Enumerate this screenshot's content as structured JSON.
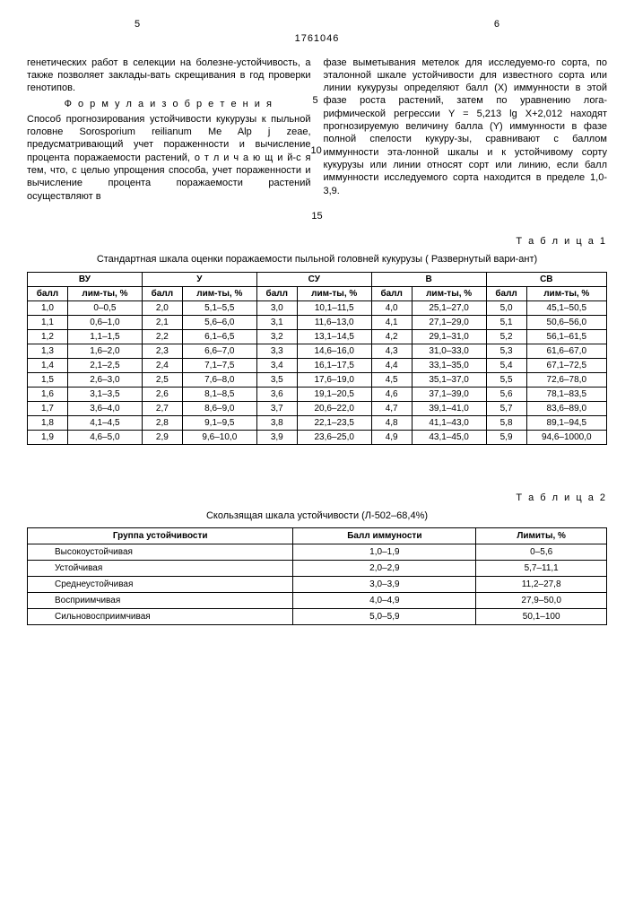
{
  "pageLeft": "5",
  "pageRight": "6",
  "docNum": "1761046",
  "leftCol": {
    "p1": "генетических работ в селекции на болезне-устойчивость, а также позволяет заклады-вать скрещивания в год проверки генотипов.",
    "formulaTitle": "Ф о р м у л а  и з о б р е т е н и я",
    "p2": "Способ прогнозирования устойчивости кукурузы к пыльной головне Sorosporium reilianum Me Alp j zeae, предусматривающий учет пораженности и вычисление процента поражаемости растений, о т л и ч а ю щ и й-с я тем, что, с целью упрощения способа, учет пораженности и вычисление процента поражаемости растений осуществляют в"
  },
  "rightCol": {
    "p1": "фазе выметывания метелок для исследуемо-го сорта, по эталонной шкале устойчивости для известного сорта или линии кукурузы определяют балл (X) иммунности в этой фазе роста растений, затем по уравнению лога-рифмической регрессии Y = 5,213 lg X+2,012 находят прогнозируемую величину балла (Y) иммунности в фазе полной спелости кукуру-зы, сравнивают с баллом иммунности эта-лонной шкалы и к устойчивому сорту кукурузы или линии относят сорт или линию, если балл иммунности исследуемого сорта находится в пределе 1,0-3,9.",
    "marginNums": [
      "5",
      "10"
    ]
  },
  "midNum": "15",
  "table1": {
    "label": "Т а б л и ц а 1",
    "caption": "Стандартная шкала оценки поражаемости пыльной головней кукурузы ( Развернутый вари-ант)",
    "groups": [
      "ВУ",
      "У",
      "СУ",
      "В",
      "СВ"
    ],
    "sub": [
      "балл",
      "лим-ты, %"
    ],
    "rows": [
      [
        "1,0",
        "0–0,5",
        "2,0",
        "5,1–5,5",
        "3,0",
        "10,1–11,5",
        "4,0",
        "25,1–27,0",
        "5,0",
        "45,1–50,5"
      ],
      [
        "1,1",
        "0,6–1,0",
        "2,1",
        "5,6–6,0",
        "3,1",
        "11,6–13,0",
        "4,1",
        "27,1–29,0",
        "5,1",
        "50,6–56,0"
      ],
      [
        "1,2",
        "1,1–1,5",
        "2,2",
        "6,1–6,5",
        "3,2",
        "13,1–14,5",
        "4,2",
        "29,1–31,0",
        "5,2",
        "56,1–61,5"
      ],
      [
        "1,3",
        "1,6–2,0",
        "2,3",
        "6,6–7,0",
        "3,3",
        "14,6–16,0",
        "4,3",
        "31,0–33,0",
        "5,3",
        "61,6–67,0"
      ],
      [
        "1,4",
        "2,1–2,5",
        "2,4",
        "7,1–7,5",
        "3,4",
        "16,1–17,5",
        "4,4",
        "33,1–35,0",
        "5,4",
        "67,1–72,5"
      ],
      [
        "1,5",
        "2,6–3,0",
        "2,5",
        "7,6–8,0",
        "3,5",
        "17,6–19,0",
        "4,5",
        "35,1–37,0",
        "5,5",
        "72,6–78,0"
      ],
      [
        "1,6",
        "3,1–3,5",
        "2,6",
        "8,1–8,5",
        "3,6",
        "19,1–20,5",
        "4,6",
        "37,1–39,0",
        "5,6",
        "78,1–83,5"
      ],
      [
        "1,7",
        "3,6–4,0",
        "2,7",
        "8,6–9,0",
        "3,7",
        "20,6–22,0",
        "4,7",
        "39,1–41,0",
        "5,7",
        "83,6–89,0"
      ],
      [
        "1,8",
        "4,1–4,5",
        "2,8",
        "9,1–9,5",
        "3,8",
        "22,1–23,5",
        "4,8",
        "41,1–43,0",
        "5,8",
        "89,1–94,5"
      ],
      [
        "1,9",
        "4,6–5,0",
        "2,9",
        "9,6–10,0",
        "3,9",
        "23,6–25,0",
        "4,9",
        "43,1–45,0",
        "5,9",
        "94,6–1000,0"
      ]
    ]
  },
  "table2": {
    "label": "Т а б л и ц а 2",
    "caption": "Скользящая шкала устойчивости (Л-502–68,4%)",
    "headers": [
      "Группа устойчивости",
      "Балл иммуности",
      "Лимиты, %"
    ],
    "rows": [
      [
        "Высокоустойчивая",
        "1,0–1,9",
        "0–5,6"
      ],
      [
        "Устойчивая",
        "2,0–2,9",
        "5,7–11,1"
      ],
      [
        "Среднеустойчивая",
        "3,0–3,9",
        "11,2–27,8"
      ],
      [
        "Восприимчивая",
        "4,0–4,9",
        "27,9–50,0"
      ],
      [
        "Сильновосприимчивая",
        "5,0–5,9",
        "50,1–100"
      ]
    ]
  }
}
